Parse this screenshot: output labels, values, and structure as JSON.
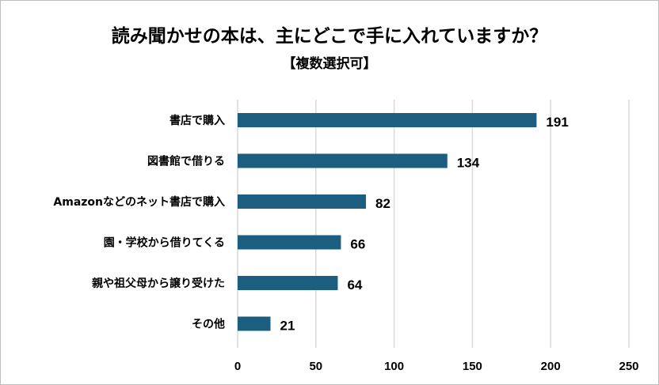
{
  "chart_data": {
    "type": "bar",
    "orientation": "horizontal",
    "title": "読み聞かせの本は、主にどこで手に入れていますか？",
    "subtitle": "【複数選択可】",
    "categories": [
      "書店で購入",
      "図書館で借りる",
      "Amazonなどのネット書店で購入",
      "園・学校から借りてくる",
      "親や祖父母から譲り受けた",
      "その他"
    ],
    "values": [
      191,
      134,
      82,
      66,
      64,
      21
    ],
    "xlim": [
      0,
      250
    ],
    "xticks": [
      0,
      50,
      100,
      150,
      200,
      250
    ],
    "grid": true,
    "bar_color": "#1b5e80",
    "legend": "none"
  }
}
